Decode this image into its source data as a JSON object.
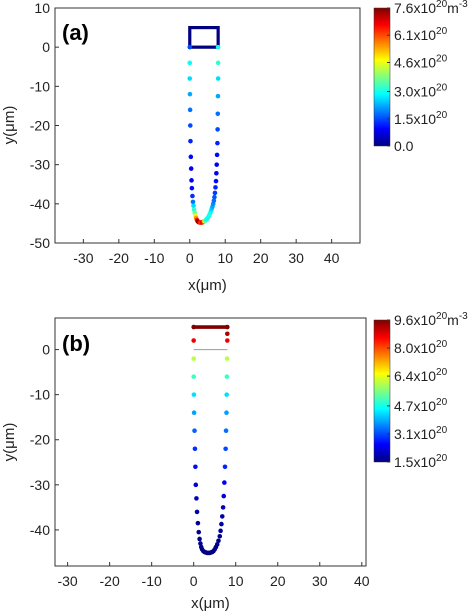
{
  "chart_data": [
    {
      "type": "scatter",
      "panel_label": "(a)",
      "xlabel": "x(μm)",
      "ylabel": "y(μm)",
      "xlim": [
        -38,
        48
      ],
      "ylim": [
        -50,
        10
      ],
      "xticks": [
        -30,
        -20,
        -10,
        0,
        10,
        20,
        30,
        40
      ],
      "yticks": [
        10,
        0,
        -10,
        -20,
        -30,
        -40,
        -50
      ],
      "grid": false,
      "colorbar": {
        "min": 0.0,
        "max": 7.6,
        "ticks": [
          7.6,
          6.1,
          4.6,
          3.0,
          1.5,
          0.0
        ],
        "labels": [
          "7.6x10",
          "6.1x10",
          "4.6x10",
          "3.0x10",
          "1.5x10",
          "0.0"
        ],
        "superscripts": [
          "20",
          "20",
          "20",
          "20",
          "20",
          ""
        ],
        "unit": "m",
        "unit_superscript": "-3"
      },
      "series": [
        {
          "x": [
            0.0,
            0.0,
            0.0,
            0.05,
            0.1,
            0.15,
            0.2,
            0.3,
            0.4,
            0.5,
            0.6,
            0.75,
            0.9,
            1.05,
            1.2,
            1.4,
            1.6,
            1.8,
            2.0,
            2.2,
            2.4,
            2.6,
            2.8,
            3.0,
            3.2,
            3.4,
            3.6,
            3.8,
            4.0,
            4.2,
            4.4,
            4.6,
            4.8,
            5.0,
            5.2,
            5.4,
            5.6,
            5.8,
            6.0,
            6.2,
            6.4,
            6.6,
            6.8,
            6.95,
            7.1,
            7.25,
            7.4,
            7.5,
            7.6,
            7.7,
            7.8,
            7.85,
            7.9,
            7.95,
            8.0,
            8.0,
            8.0
          ],
          "y": [
            0,
            -4,
            -8,
            -12,
            -16,
            -20,
            -24,
            -28,
            -31,
            -34,
            -36,
            -38,
            -39.5,
            -40.5,
            -41.5,
            -42.3,
            -43,
            -43.6,
            -44.1,
            -44.4,
            -44.6,
            -44.7,
            -44.75,
            -44.8,
            -44.8,
            -44.75,
            -44.7,
            -44.6,
            -44.5,
            -44.4,
            -44.3,
            -44.1,
            -43.9,
            -43.7,
            -43.4,
            -43.1,
            -42.7,
            -42.3,
            -41.8,
            -41.3,
            -40.7,
            -40.0,
            -39.2,
            -38.3,
            -37.2,
            -35.8,
            -34.2,
            -32.2,
            -30,
            -27.5,
            -24.5,
            -21,
            -17,
            -12.5,
            -8,
            -4,
            0
          ],
          "values": [
            1.5,
            2.9,
            2.6,
            2.2,
            1.8,
            1.5,
            1.2,
            1.0,
            0.9,
            0.9,
            1.0,
            1.3,
            1.8,
            2.6,
            3.2,
            3.6,
            4.6,
            5.5,
            6.5,
            7.0,
            7.6,
            7.5,
            6.7,
            6.4,
            6.2,
            6.5,
            6.9,
            6.5,
            5.5,
            4.2,
            3.6,
            3.2,
            3.0,
            2.9,
            2.9,
            3.0,
            3.1,
            3.0,
            2.8,
            2.5,
            2.2,
            2.0,
            1.8,
            1.6,
            1.4,
            1.2,
            1.0,
            0.9,
            0.9,
            1.0,
            1.2,
            1.5,
            1.8,
            2.2,
            2.6,
            3.2,
            3.0
          ]
        }
      ],
      "outline": {
        "x": [
          0,
          8
        ],
        "y": [
          0,
          5
        ],
        "value": 0.0
      }
    },
    {
      "type": "scatter",
      "panel_label": "(b)",
      "xlabel": "x(μm)",
      "ylabel": "y(μm)",
      "xlim": [
        -33,
        41
      ],
      "ylim": [
        -48,
        7
      ],
      "xticks": [
        -30,
        -20,
        -10,
        0,
        10,
        20,
        30,
        40
      ],
      "yticks": [
        0,
        -10,
        -20,
        -30,
        -40
      ],
      "grid": false,
      "colorbar": {
        "min": 1.5,
        "max": 9.6,
        "ticks": [
          9.6,
          8.0,
          6.4,
          4.7,
          3.1,
          1.5
        ],
        "labels": [
          "9.6x10",
          "8.0x10",
          "6.4x10",
          "4.7x10",
          "3.1x10",
          "1.5x10"
        ],
        "superscripts": [
          "20",
          "20",
          "20",
          "20",
          "20",
          "20"
        ],
        "unit": "m",
        "unit_superscript": "-3"
      },
      "series": [
        {
          "x": [
            0.0,
            0.0,
            0.0,
            0.0,
            0.05,
            0.1,
            0.2,
            0.3,
            0.4,
            0.5,
            0.65,
            0.8,
            1.0,
            1.2,
            1.4,
            1.6,
            1.8,
            2.0,
            2.3,
            2.6,
            2.9,
            3.2,
            3.5,
            3.8,
            4.1,
            4.4,
            4.7,
            5.0,
            5.3,
            5.6,
            5.9,
            6.2,
            6.4,
            6.6,
            6.8,
            7.0,
            7.15,
            7.3,
            7.45,
            7.6,
            7.7,
            7.8,
            7.85,
            7.9,
            7.95,
            8.0,
            8.0,
            8.0
          ],
          "y": [
            5,
            2,
            -2,
            -6,
            -10,
            -14,
            -18,
            -22,
            -26,
            -30,
            -33,
            -36,
            -38.5,
            -40.5,
            -42,
            -43,
            -43.8,
            -44.3,
            -44.7,
            -44.9,
            -45.0,
            -45.1,
            -45.1,
            -45.1,
            -45.0,
            -44.9,
            -44.7,
            -44.3,
            -43.8,
            -43.2,
            -42.4,
            -41.4,
            -40.2,
            -38.7,
            -37.0,
            -35,
            -32.5,
            -29.5,
            -26,
            -22,
            -18,
            -14,
            -10,
            -6,
            -2,
            2,
            5,
            3.5
          ],
          "values": [
            9.6,
            8.7,
            6.0,
            5.0,
            4.3,
            3.8,
            3.3,
            2.9,
            2.6,
            2.2,
            2.0,
            1.8,
            1.7,
            1.6,
            1.6,
            1.6,
            1.6,
            1.5,
            1.5,
            1.5,
            1.5,
            1.5,
            1.5,
            1.5,
            1.5,
            1.5,
            1.5,
            1.5,
            1.6,
            1.6,
            1.6,
            1.6,
            1.7,
            1.8,
            1.9,
            2.0,
            2.2,
            2.5,
            2.8,
            3.1,
            3.4,
            3.8,
            4.3,
            5.0,
            6.0,
            8.7,
            9.6,
            9.2
          ]
        }
      ],
      "top_edge": {
        "x": [
          0,
          8
        ],
        "y": 5,
        "values": [
          9.6,
          9.6
        ]
      },
      "inner_line": {
        "x": [
          0,
          8
        ],
        "y": 0
      }
    }
  ]
}
